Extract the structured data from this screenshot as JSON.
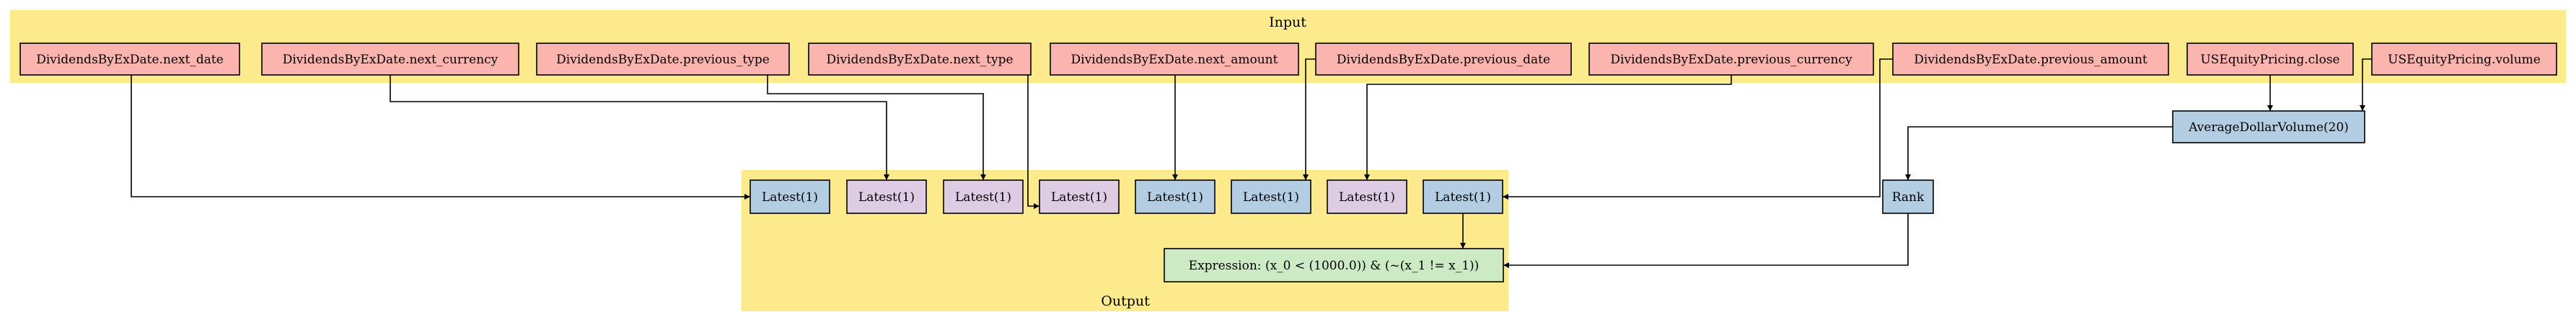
{
  "clusters": {
    "input": {
      "label": "Input",
      "color": "#fdea8c"
    },
    "output": {
      "label": "Output",
      "color": "#fdea8c"
    }
  },
  "colors": {
    "input_node": "#fbb4ae",
    "float_node": "#b3cde3",
    "other_node": "#decbe4",
    "filter_node": "#ccebc5",
    "edge": "#000000"
  },
  "nodes": [
    {
      "id": "in_next_date",
      "label": "DividendsByExDate.next_date",
      "kind": "input_node"
    },
    {
      "id": "in_next_currency",
      "label": "DividendsByExDate.next_currency",
      "kind": "input_node"
    },
    {
      "id": "in_previous_type",
      "label": "DividendsByExDate.previous_type",
      "kind": "input_node"
    },
    {
      "id": "in_next_type",
      "label": "DividendsByExDate.next_type",
      "kind": "input_node"
    },
    {
      "id": "in_next_amount",
      "label": "DividendsByExDate.next_amount",
      "kind": "input_node"
    },
    {
      "id": "in_previous_date",
      "label": "DividendsByExDate.previous_date",
      "kind": "input_node"
    },
    {
      "id": "in_previous_currency",
      "label": "DividendsByExDate.previous_currency",
      "kind": "input_node"
    },
    {
      "id": "in_previous_amount",
      "label": "DividendsByExDate.previous_amount",
      "kind": "input_node"
    },
    {
      "id": "in_close",
      "label": "USEquityPricing.close",
      "kind": "input_node"
    },
    {
      "id": "in_volume",
      "label": "USEquityPricing.volume",
      "kind": "input_node"
    },
    {
      "id": "adv",
      "label": "AverageDollarVolume(20)",
      "kind": "float_node"
    },
    {
      "id": "latest_1",
      "label": "Latest(1)",
      "kind": "float_node"
    },
    {
      "id": "latest_2",
      "label": "Latest(1)",
      "kind": "other_node"
    },
    {
      "id": "latest_3",
      "label": "Latest(1)",
      "kind": "other_node"
    },
    {
      "id": "latest_4",
      "label": "Latest(1)",
      "kind": "other_node"
    },
    {
      "id": "latest_5",
      "label": "Latest(1)",
      "kind": "float_node"
    },
    {
      "id": "latest_6",
      "label": "Latest(1)",
      "kind": "float_node"
    },
    {
      "id": "latest_7",
      "label": "Latest(1)",
      "kind": "other_node"
    },
    {
      "id": "latest_8",
      "label": "Latest(1)",
      "kind": "float_node"
    },
    {
      "id": "rank",
      "label": "Rank",
      "kind": "float_node"
    },
    {
      "id": "expression",
      "label": "Expression: (x_0 < (1000.0)) & (~(x_1 != x_1))",
      "kind": "filter_node"
    }
  ],
  "edges": [
    {
      "from": "in_next_date",
      "to": "latest_1"
    },
    {
      "from": "in_next_currency",
      "to": "latest_2"
    },
    {
      "from": "in_previous_type",
      "to": "latest_3"
    },
    {
      "from": "in_next_type",
      "to": "latest_4"
    },
    {
      "from": "in_next_amount",
      "to": "latest_5"
    },
    {
      "from": "in_previous_date",
      "to": "latest_6"
    },
    {
      "from": "in_previous_currency",
      "to": "latest_7"
    },
    {
      "from": "in_previous_amount",
      "to": "latest_8"
    },
    {
      "from": "in_close",
      "to": "adv"
    },
    {
      "from": "in_volume",
      "to": "adv"
    },
    {
      "from": "adv",
      "to": "rank"
    },
    {
      "from": "latest_8",
      "to": "expression"
    },
    {
      "from": "rank",
      "to": "expression"
    }
  ]
}
